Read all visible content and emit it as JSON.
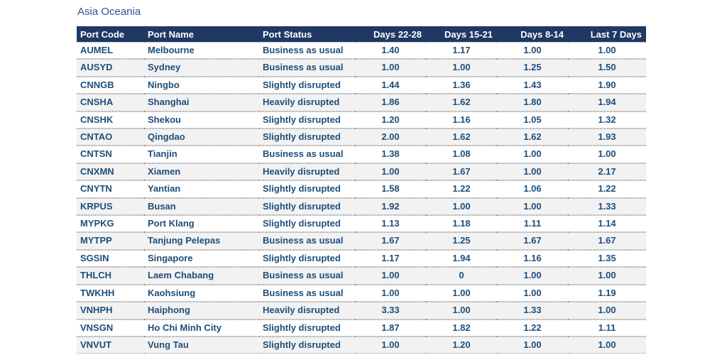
{
  "colors": {
    "header_bg": "#1F3864",
    "header_text": "#FFFFFF",
    "body_text": "#1F4E79",
    "title_text": "#2F5496",
    "row_bg": "#FFFFFF",
    "row_alt_bg": "#F2F2F2",
    "border_dotted": "#999999"
  },
  "chart_data": {
    "type": "table",
    "title": "Asia Oceania",
    "columns": [
      "Port Code",
      "Port Name",
      "Port Status",
      "Days 22-28",
      "Days 15-21",
      "Days 8-14",
      "Last 7 Days"
    ],
    "column_keys": [
      "port-code",
      "port-name",
      "port-status",
      "days-22-28",
      "days-15-21",
      "days-8-14",
      "last-7-days"
    ],
    "column_types": [
      "text",
      "text",
      "text",
      "number",
      "number",
      "number",
      "number"
    ],
    "rows": [
      [
        "AUMEL",
        "Melbourne",
        "Business as usual",
        "1.40",
        "1.17",
        "1.00",
        "1.00"
      ],
      [
        "AUSYD",
        "Sydney",
        "Business as usual",
        "1.00",
        "1.00",
        "1.25",
        "1.50"
      ],
      [
        "CNNGB",
        "Ningbo",
        "Slightly disrupted",
        "1.44",
        "1.36",
        "1.43",
        "1.90"
      ],
      [
        "CNSHA",
        "Shanghai",
        "Heavily disrupted",
        "1.86",
        "1.62",
        "1.80",
        "1.94"
      ],
      [
        "CNSHK",
        "Shekou",
        "Slightly disrupted",
        "1.20",
        "1.16",
        "1.05",
        "1.32"
      ],
      [
        "CNTAO",
        "Qingdao",
        "Slightly disrupted",
        "2.00",
        "1.62",
        "1.62",
        "1.93"
      ],
      [
        "CNTSN",
        "Tianjin",
        "Business as usual",
        "1.38",
        "1.08",
        "1.00",
        "1.00"
      ],
      [
        "CNXMN",
        "Xiamen",
        "Heavily disrupted",
        "1.00",
        "1.67",
        "1.00",
        "2.17"
      ],
      [
        "CNYTN",
        "Yantian",
        "Slightly disrupted",
        "1.58",
        "1.22",
        "1.06",
        "1.22"
      ],
      [
        "KRPUS",
        "Busan",
        "Slightly disrupted",
        "1.92",
        "1.00",
        "1.00",
        "1.33"
      ],
      [
        "MYPKG",
        "Port Klang",
        "Slightly disrupted",
        "1.13",
        "1.18",
        "1.11",
        "1.14"
      ],
      [
        "MYTPP",
        "Tanjung Pelepas",
        "Business as usual",
        "1.67",
        "1.25",
        "1.67",
        "1.67"
      ],
      [
        "SGSIN",
        "Singapore",
        "Slightly disrupted",
        "1.17",
        "1.94",
        "1.16",
        "1.35"
      ],
      [
        "THLCH",
        "Laem Chabang",
        "Business as usual",
        "1.00",
        "0",
        "1.00",
        "1.00"
      ],
      [
        "TWKHH",
        "Kaohsiung",
        "Business as usual",
        "1.00",
        "1.00",
        "1.00",
        "1.19"
      ],
      [
        "VNHPH",
        "Haiphong",
        "Heavily disrupted",
        "3.33",
        "1.00",
        "1.33",
        "1.00"
      ],
      [
        "VNSGN",
        "Ho Chi Minh City",
        "Slightly disrupted",
        "1.87",
        "1.82",
        "1.22",
        "1.11"
      ],
      [
        "VNVUT",
        "Vung Tau",
        "Slightly disrupted",
        "1.00",
        "1.20",
        "1.00",
        "1.00"
      ]
    ]
  }
}
